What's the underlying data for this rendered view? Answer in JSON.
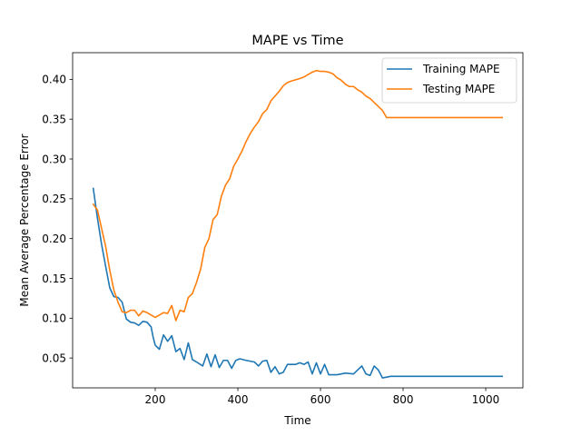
{
  "chart_data": {
    "type": "line",
    "title": "MAPE vs Time",
    "xlabel": "Time",
    "ylabel": "Mean Average Percentage Error",
    "xlim": [
      0,
      1090
    ],
    "ylim": [
      0.0125,
      0.4335
    ],
    "xticks": [
      200,
      400,
      600,
      800,
      1000
    ],
    "yticks": [
      0.05,
      0.1,
      0.15,
      0.2,
      0.25,
      0.3,
      0.35,
      0.4
    ],
    "grid": false,
    "legend_position": "top-right",
    "series": [
      {
        "name": "Training MAPE",
        "color": "#1f77b4",
        "points": [
          [
            50,
            0.263
          ],
          [
            60,
            0.226
          ],
          [
            70,
            0.193
          ],
          [
            80,
            0.165
          ],
          [
            90,
            0.138
          ],
          [
            100,
            0.127
          ],
          [
            110,
            0.126
          ],
          [
            120,
            0.12
          ],
          [
            130,
            0.099
          ],
          [
            140,
            0.095
          ],
          [
            150,
            0.094
          ],
          [
            160,
            0.091
          ],
          [
            170,
            0.096
          ],
          [
            180,
            0.095
          ],
          [
            190,
            0.089
          ],
          [
            195,
            0.076
          ],
          [
            200,
            0.066
          ],
          [
            210,
            0.061
          ],
          [
            220,
            0.079
          ],
          [
            230,
            0.071
          ],
          [
            240,
            0.078
          ],
          [
            250,
            0.058
          ],
          [
            260,
            0.062
          ],
          [
            270,
            0.048
          ],
          [
            280,
            0.069
          ],
          [
            290,
            0.048
          ],
          [
            300,
            0.045
          ],
          [
            315,
            0.04
          ],
          [
            325,
            0.055
          ],
          [
            335,
            0.039
          ],
          [
            345,
            0.054
          ],
          [
            355,
            0.038
          ],
          [
            365,
            0.047
          ],
          [
            375,
            0.047
          ],
          [
            385,
            0.037
          ],
          [
            395,
            0.047
          ],
          [
            405,
            0.049
          ],
          [
            420,
            0.047
          ],
          [
            440,
            0.045
          ],
          [
            450,
            0.04
          ],
          [
            460,
            0.046
          ],
          [
            470,
            0.047
          ],
          [
            480,
            0.032
          ],
          [
            490,
            0.039
          ],
          [
            500,
            0.03
          ],
          [
            510,
            0.032
          ],
          [
            520,
            0.042
          ],
          [
            540,
            0.042
          ],
          [
            550,
            0.044
          ],
          [
            560,
            0.042
          ],
          [
            570,
            0.045
          ],
          [
            580,
            0.03
          ],
          [
            590,
            0.044
          ],
          [
            600,
            0.03
          ],
          [
            610,
            0.042
          ],
          [
            620,
            0.029
          ],
          [
            640,
            0.029
          ],
          [
            650,
            0.03
          ],
          [
            660,
            0.031
          ],
          [
            680,
            0.03
          ],
          [
            690,
            0.035
          ],
          [
            700,
            0.04
          ],
          [
            710,
            0.03
          ],
          [
            720,
            0.028
          ],
          [
            730,
            0.04
          ],
          [
            740,
            0.035
          ],
          [
            750,
            0.025
          ],
          [
            760,
            0.026
          ],
          [
            770,
            0.027
          ],
          [
            800,
            0.027
          ],
          [
            900,
            0.027
          ],
          [
            1000,
            0.027
          ],
          [
            1040,
            0.027
          ]
        ]
      },
      {
        "name": "Testing MAPE",
        "color": "#ff7f0e",
        "points": [
          [
            50,
            0.243
          ],
          [
            60,
            0.236
          ],
          [
            70,
            0.213
          ],
          [
            80,
            0.19
          ],
          [
            90,
            0.16
          ],
          [
            100,
            0.135
          ],
          [
            110,
            0.12
          ],
          [
            120,
            0.108
          ],
          [
            130,
            0.107
          ],
          [
            140,
            0.11
          ],
          [
            150,
            0.11
          ],
          [
            160,
            0.103
          ],
          [
            170,
            0.109
          ],
          [
            180,
            0.107
          ],
          [
            190,
            0.104
          ],
          [
            200,
            0.101
          ],
          [
            210,
            0.104
          ],
          [
            220,
            0.107
          ],
          [
            230,
            0.106
          ],
          [
            240,
            0.116
          ],
          [
            250,
            0.097
          ],
          [
            260,
            0.11
          ],
          [
            270,
            0.108
          ],
          [
            280,
            0.126
          ],
          [
            290,
            0.131
          ],
          [
            300,
            0.145
          ],
          [
            310,
            0.162
          ],
          [
            320,
            0.189
          ],
          [
            330,
            0.2
          ],
          [
            340,
            0.224
          ],
          [
            350,
            0.23
          ],
          [
            360,
            0.253
          ],
          [
            370,
            0.267
          ],
          [
            380,
            0.275
          ],
          [
            390,
            0.291
          ],
          [
            400,
            0.3
          ],
          [
            410,
            0.31
          ],
          [
            420,
            0.322
          ],
          [
            430,
            0.332
          ],
          [
            440,
            0.34
          ],
          [
            450,
            0.347
          ],
          [
            460,
            0.357
          ],
          [
            470,
            0.362
          ],
          [
            480,
            0.373
          ],
          [
            490,
            0.379
          ],
          [
            500,
            0.385
          ],
          [
            510,
            0.392
          ],
          [
            520,
            0.396
          ],
          [
            530,
            0.398
          ],
          [
            550,
            0.401
          ],
          [
            560,
            0.403
          ],
          [
            570,
            0.406
          ],
          [
            580,
            0.409
          ],
          [
            590,
            0.411
          ],
          [
            600,
            0.41
          ],
          [
            610,
            0.41
          ],
          [
            620,
            0.409
          ],
          [
            630,
            0.407
          ],
          [
            640,
            0.402
          ],
          [
            650,
            0.399
          ],
          [
            660,
            0.394
          ],
          [
            670,
            0.391
          ],
          [
            680,
            0.391
          ],
          [
            690,
            0.387
          ],
          [
            700,
            0.384
          ],
          [
            710,
            0.379
          ],
          [
            720,
            0.376
          ],
          [
            730,
            0.371
          ],
          [
            740,
            0.366
          ],
          [
            750,
            0.361
          ],
          [
            760,
            0.352
          ],
          [
            800,
            0.352
          ],
          [
            900,
            0.352
          ],
          [
            1000,
            0.352
          ],
          [
            1040,
            0.352
          ]
        ]
      }
    ]
  }
}
